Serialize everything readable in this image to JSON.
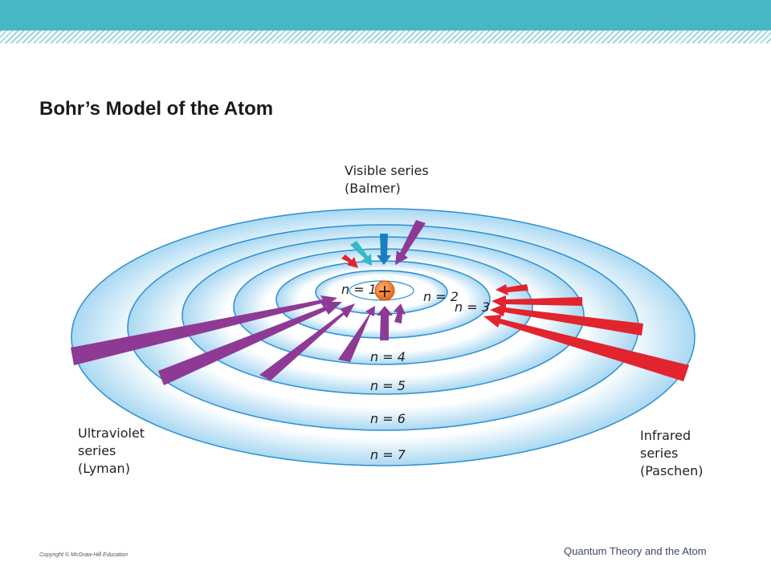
{
  "slide": {
    "title": "Bohr’s Model of the Atom",
    "copyright": "Copyright © McGraw-Hill Education",
    "topic": "Quantum Theory and the Atom"
  },
  "diagram": {
    "nucleus_symbol": "+",
    "series": {
      "visible": [
        "Visible series",
        "(Balmer)"
      ],
      "ultraviolet": [
        "Ultraviolet",
        "series",
        "(Lyman)"
      ],
      "infrared": [
        "Infrared",
        "series",
        "(Paschen)"
      ]
    },
    "orbits": {
      "n1": "n = 1",
      "n2": "n = 2",
      "n3": "n = 3",
      "n4": "n = 4",
      "n5": "n = 5",
      "n6": "n = 6",
      "n7": "n = 7"
    },
    "colors": {
      "lyman": "#8e3a95",
      "balmer_blue": "#1a7fc1",
      "balmer_cyan": "#35b9c9",
      "balmer_red": "#e2242f",
      "paschen": "#e2242f",
      "orbit_fill": "#c6e6f6",
      "orbit_stroke": "#2b8fd0",
      "nucleus": "#f07f27",
      "header": "#47b7c6"
    }
  }
}
